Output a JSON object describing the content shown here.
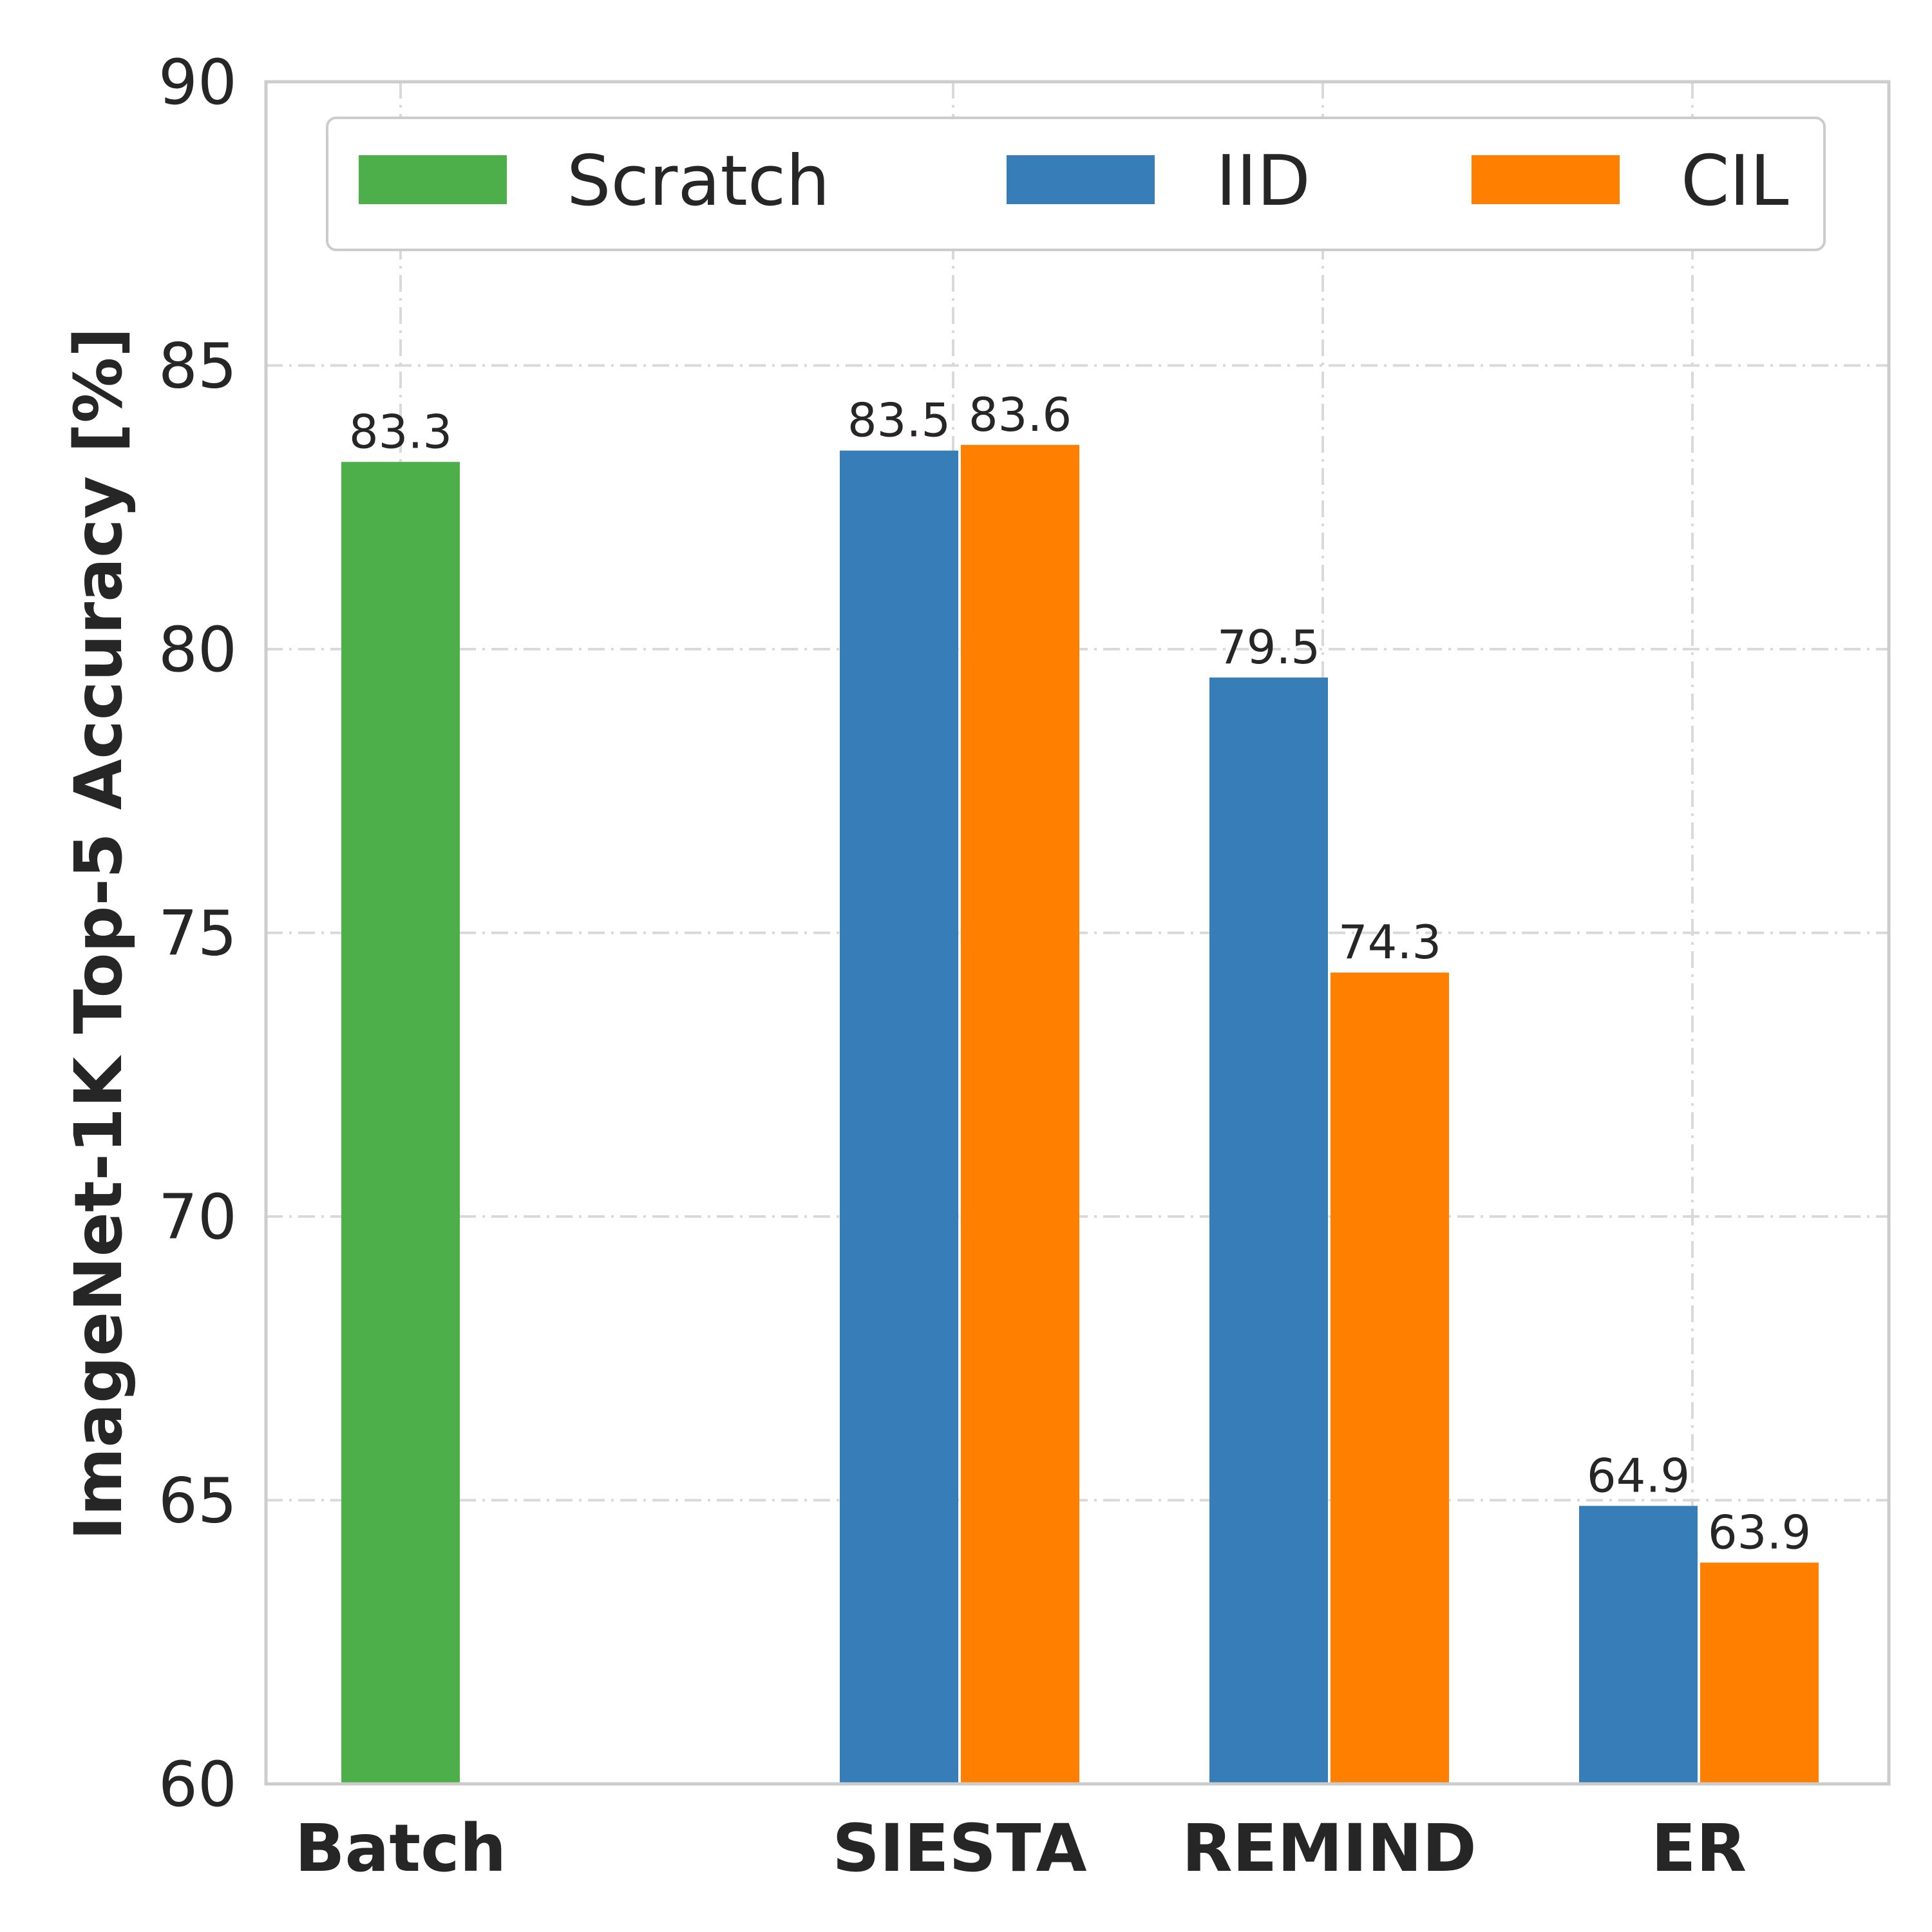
{
  "chart_data": {
    "type": "bar",
    "categories": [
      "Batch",
      "SIESTA",
      "REMIND",
      "ER"
    ],
    "series": [
      {
        "name": "Scratch",
        "color": "#4daf4a",
        "values": [
          83.3,
          null,
          null,
          null
        ]
      },
      {
        "name": "IID",
        "color": "#377eb8",
        "values": [
          null,
          83.5,
          79.5,
          64.9
        ]
      },
      {
        "name": "CIL",
        "color": "#ff7f00",
        "values": [
          null,
          83.6,
          74.3,
          63.9
        ]
      }
    ],
    "title": "",
    "xlabel": "",
    "ylabel": "ImageNet-1K  Top-5 Accuracy [%]",
    "ylim": [
      60,
      90
    ],
    "yticks": [
      60,
      65,
      70,
      75,
      80,
      85,
      90
    ],
    "grid": true,
    "legend_position": "top"
  }
}
